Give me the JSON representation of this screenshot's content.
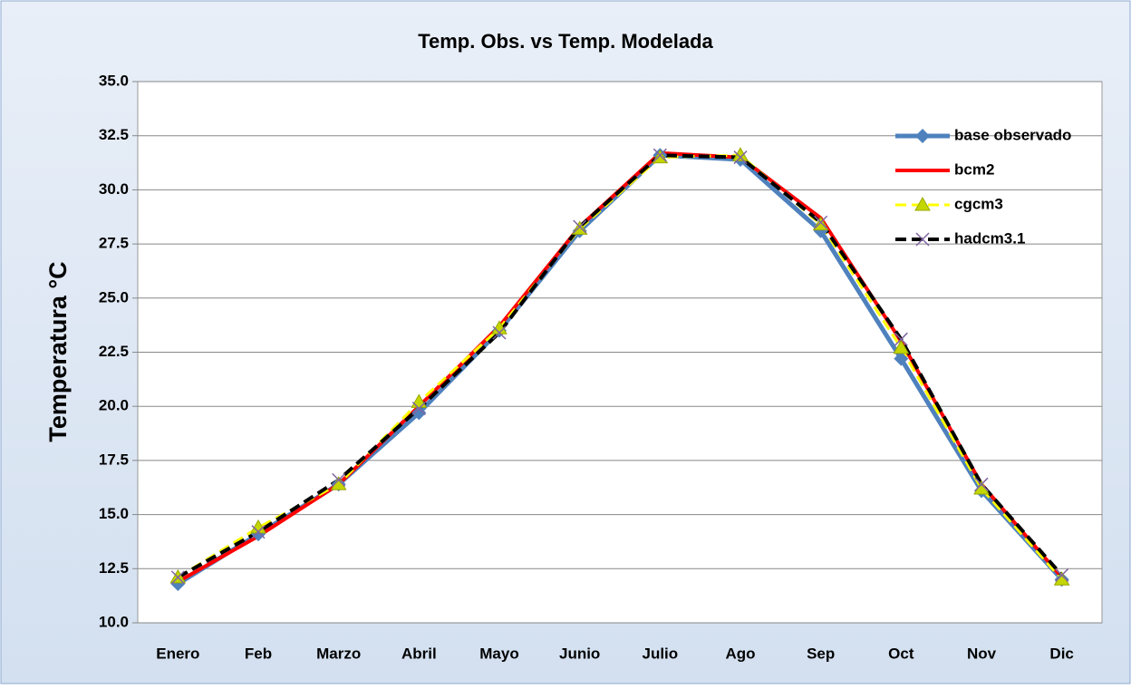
{
  "chart_data": {
    "type": "line",
    "title": "Temp. Obs. vs Temp. Modelada",
    "y_label": "Temperatura °C",
    "categories": [
      "Enero",
      "Feb",
      "Marzo",
      "Abril",
      "Mayo",
      "Junio",
      "Julio",
      "Ago",
      "Sep",
      "Oct",
      "Nov",
      "Dic"
    ],
    "series": [
      {
        "name": "base observado",
        "color": "#4f81bd",
        "marker": "diamond",
        "dash": false,
        "values": [
          11.8,
          14.1,
          16.4,
          19.7,
          23.5,
          28.1,
          31.6,
          31.4,
          28.1,
          22.2,
          16.1,
          12.0
        ]
      },
      {
        "name": "bcm2",
        "color": "#ff0000",
        "marker": "none",
        "dash": false,
        "values": [
          11.9,
          14.0,
          16.4,
          20.0,
          23.7,
          28.3,
          31.7,
          31.5,
          28.7,
          23.0,
          16.4,
          12.1
        ]
      },
      {
        "name": "cgcm3",
        "color": "#ffff00",
        "marker": "triangle",
        "dash": true,
        "values": [
          12.1,
          14.4,
          16.4,
          20.2,
          23.6,
          28.2,
          31.5,
          31.6,
          28.4,
          22.7,
          16.2,
          12.0
        ]
      },
      {
        "name": "hadcm3.1",
        "color": "#000000",
        "marker": "x",
        "dash": true,
        "values": [
          12.1,
          14.2,
          16.6,
          19.9,
          23.4,
          28.3,
          31.6,
          31.5,
          28.5,
          23.1,
          16.4,
          12.2
        ]
      }
    ],
    "ylim": [
      10,
      35
    ],
    "yticks": [
      {
        "value": 10,
        "label": "10.0"
      },
      12.5,
      {
        "value": 15,
        "label": "15.0"
      },
      17.5,
      {
        "value": 20,
        "label": "20.0"
      },
      22.5,
      {
        "value": 25,
        "label": "25.0"
      },
      27.5,
      {
        "value": 30,
        "label": "30.0"
      },
      32.5,
      {
        "value": 35,
        "label": "35.0"
      }
    ],
    "grid": true,
    "legend": "top-right"
  }
}
